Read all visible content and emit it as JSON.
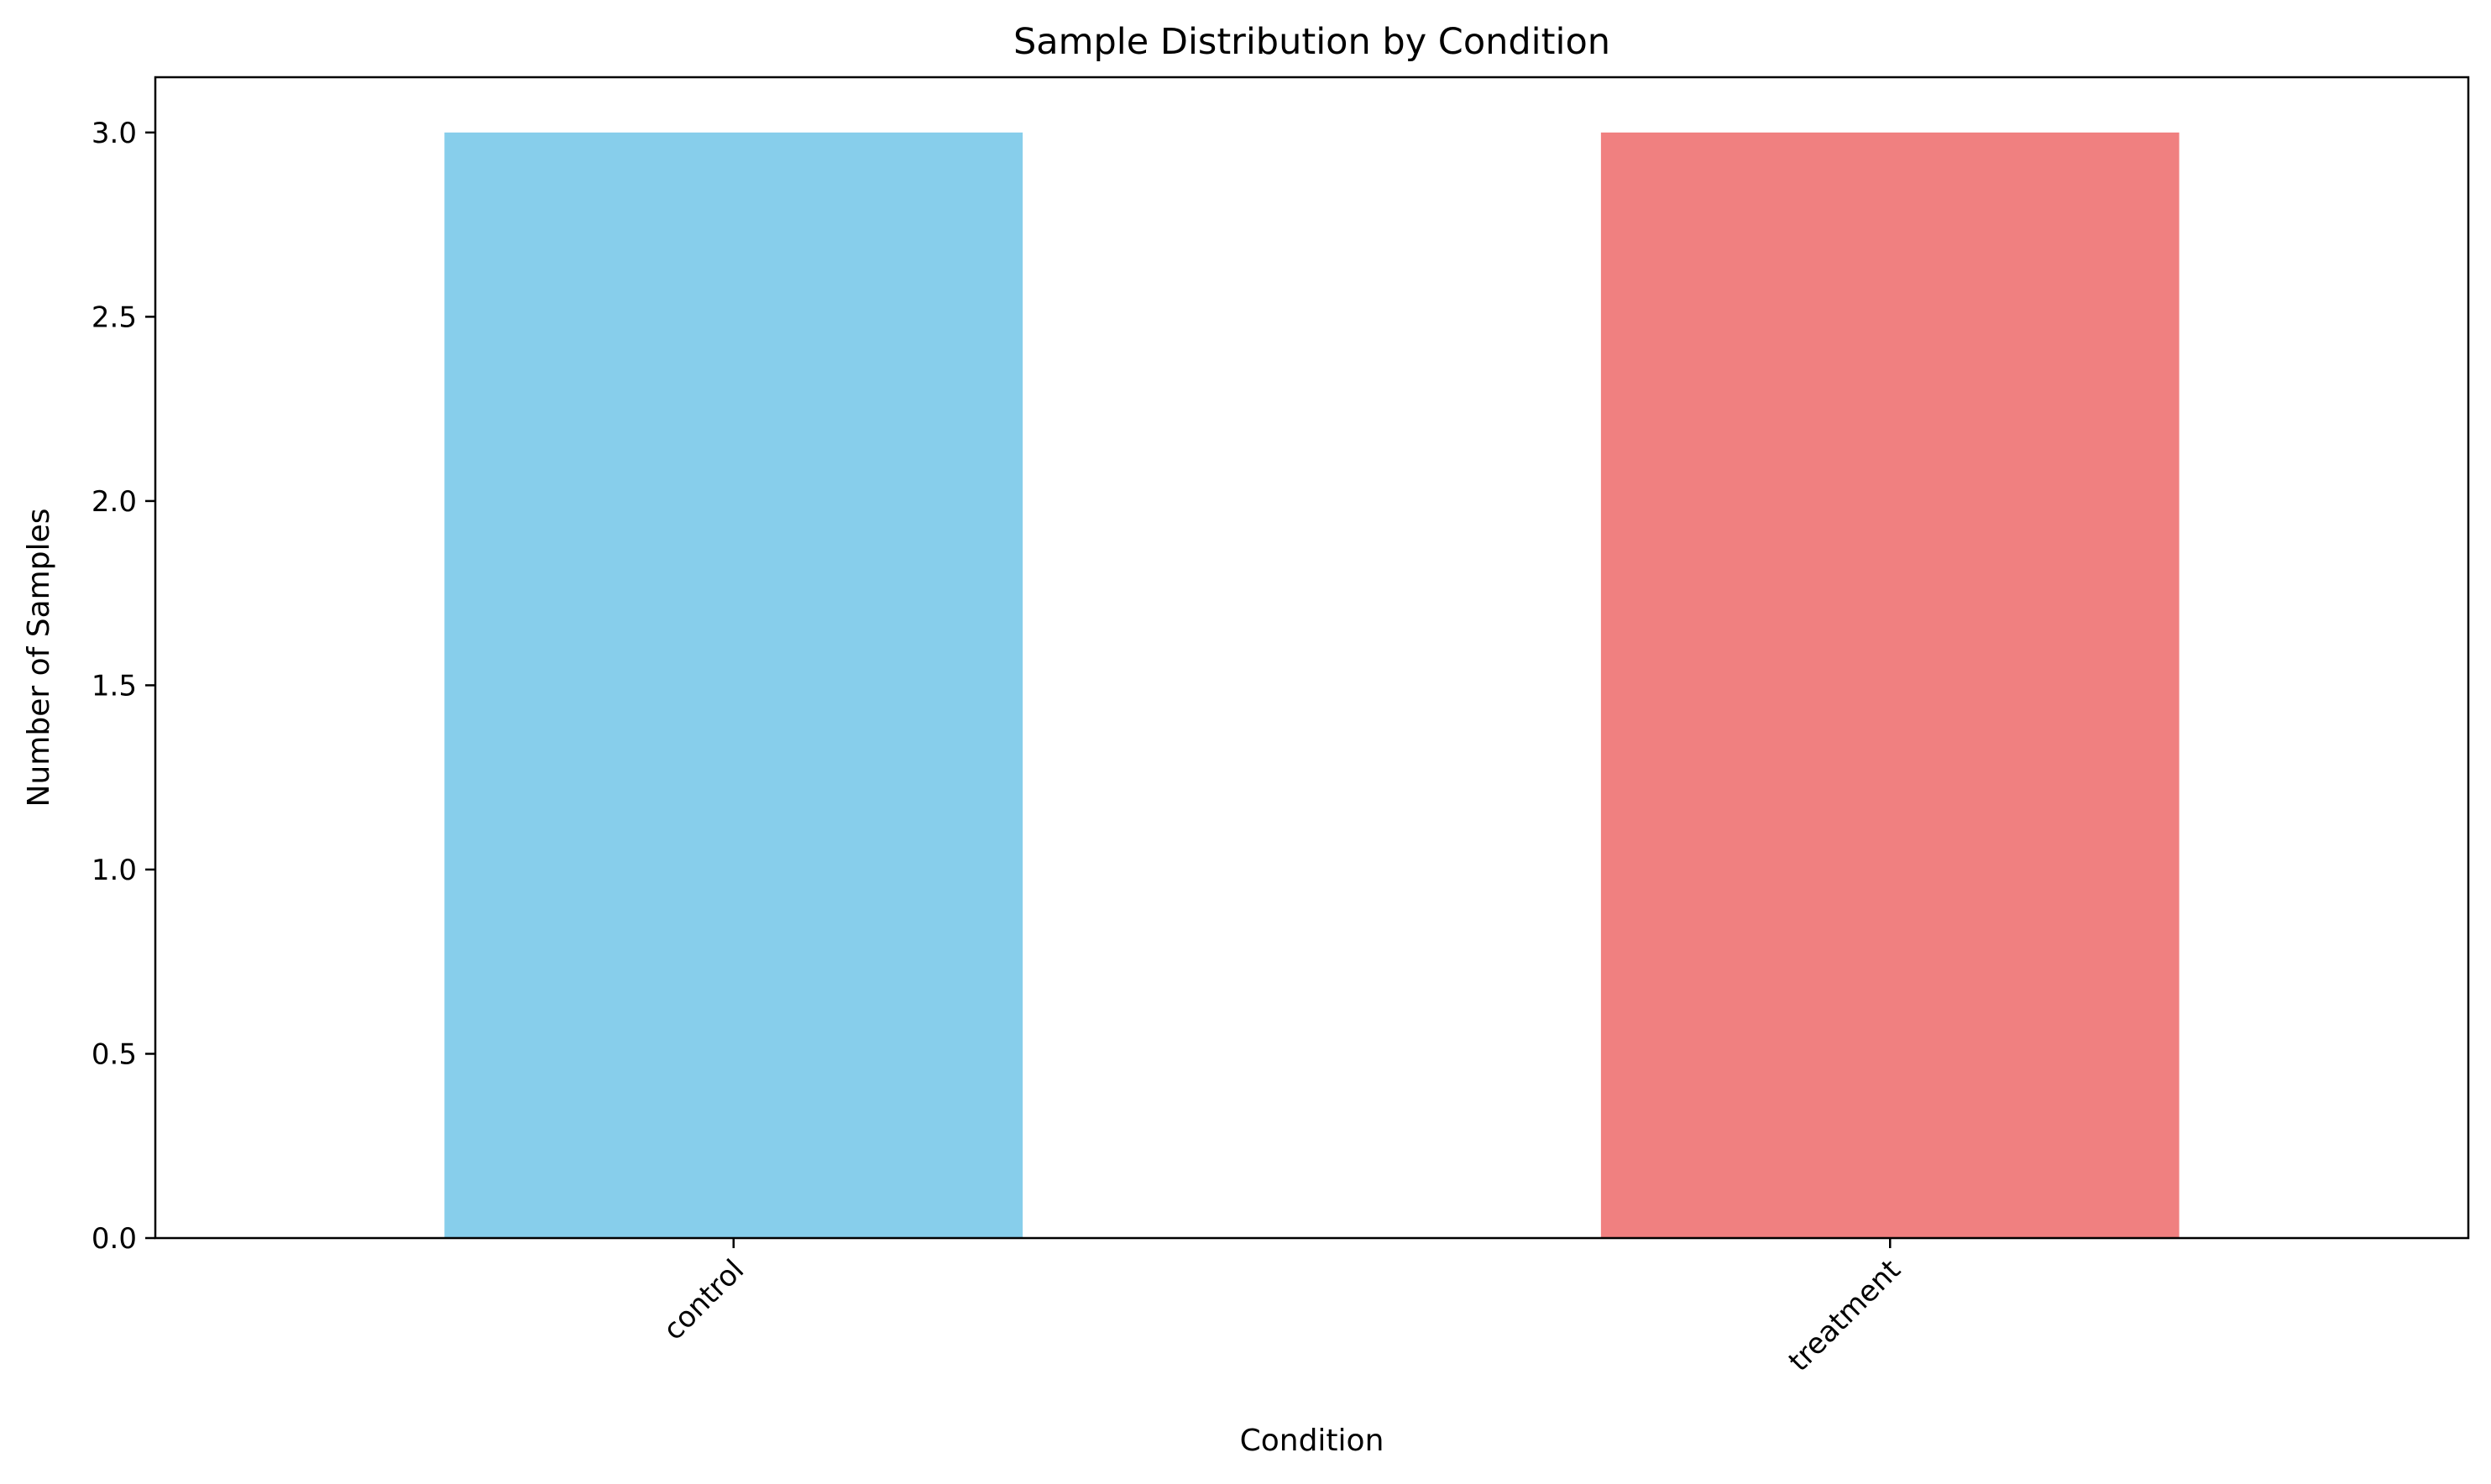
{
  "chart_data": {
    "type": "bar",
    "title": "Sample Distribution by Condition",
    "xlabel": "Condition",
    "ylabel": "Number of Samples",
    "categories": [
      "control",
      "treatment"
    ],
    "values": [
      3,
      3
    ],
    "colors": [
      "#87CEEB",
      "#F08080"
    ],
    "ylim": [
      0,
      3.15
    ],
    "yticks": [
      0,
      0.5,
      1,
      1.5,
      2,
      2.5,
      3
    ],
    "ytick_labels": [
      "0.0",
      "0.5",
      "1.0",
      "1.5",
      "2.0",
      "2.5",
      "3.0"
    ],
    "xtick_rotation_deg": 45,
    "grid": false,
    "legend": "none"
  }
}
